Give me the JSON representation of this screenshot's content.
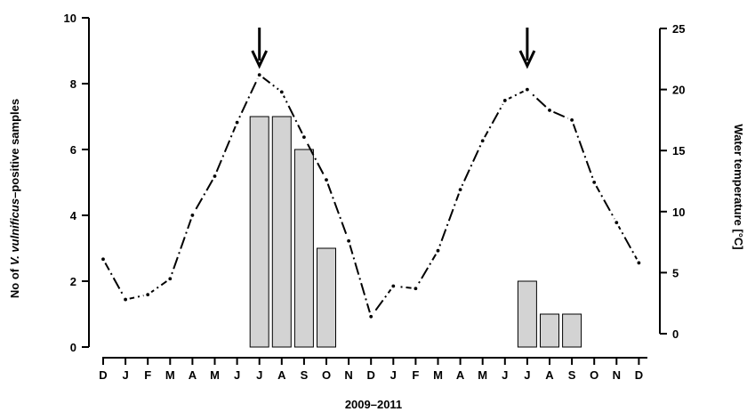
{
  "chart_data": {
    "type": "bar",
    "title": "",
    "xlabel": "2009–2011",
    "ylabel": {
      "prefix": "No of ",
      "italic": "V. vulnificus",
      "suffix": "–positive samples"
    },
    "y2label": "Water temperature [°C]",
    "ylim": [
      0,
      10
    ],
    "y_ticks": [
      0,
      2,
      4,
      6,
      8,
      10
    ],
    "y2lim": [
      0,
      25
    ],
    "y2_ticks": [
      0,
      5,
      10,
      15,
      20,
      25
    ],
    "categories": [
      "D",
      "J",
      "F",
      "M",
      "A",
      "M",
      "J",
      "J",
      "A",
      "S",
      "O",
      "N",
      "D",
      "J",
      "F",
      "M",
      "A",
      "M",
      "J",
      "J",
      "A",
      "S",
      "O",
      "N",
      "D"
    ],
    "series": [
      {
        "kind": "bar",
        "axis": "left",
        "color": "#d3d3d3",
        "values": [
          0,
          0,
          0,
          0,
          0,
          0,
          0,
          7,
          7,
          6,
          3,
          0,
          0,
          0,
          0,
          0,
          0,
          0,
          0,
          2,
          1,
          1,
          0,
          0,
          0
        ]
      },
      {
        "kind": "line",
        "axis": "right",
        "style": "dash-dot",
        "color": "#000000",
        "values": [
          6.1,
          2.8,
          3.2,
          4.5,
          9.7,
          12.9,
          17.3,
          21.2,
          19.8,
          16.1,
          12.6,
          7.6,
          1.4,
          3.9,
          3.7,
          6.8,
          11.8,
          15.8,
          19.1,
          20.0,
          18.3,
          17.5,
          12.4,
          9.1,
          5.8
        ]
      }
    ],
    "annotations": [
      {
        "type": "arrow-down",
        "category_index": 7
      },
      {
        "type": "arrow-down",
        "category_index": 19
      }
    ],
    "grid": false,
    "legend": "none"
  }
}
